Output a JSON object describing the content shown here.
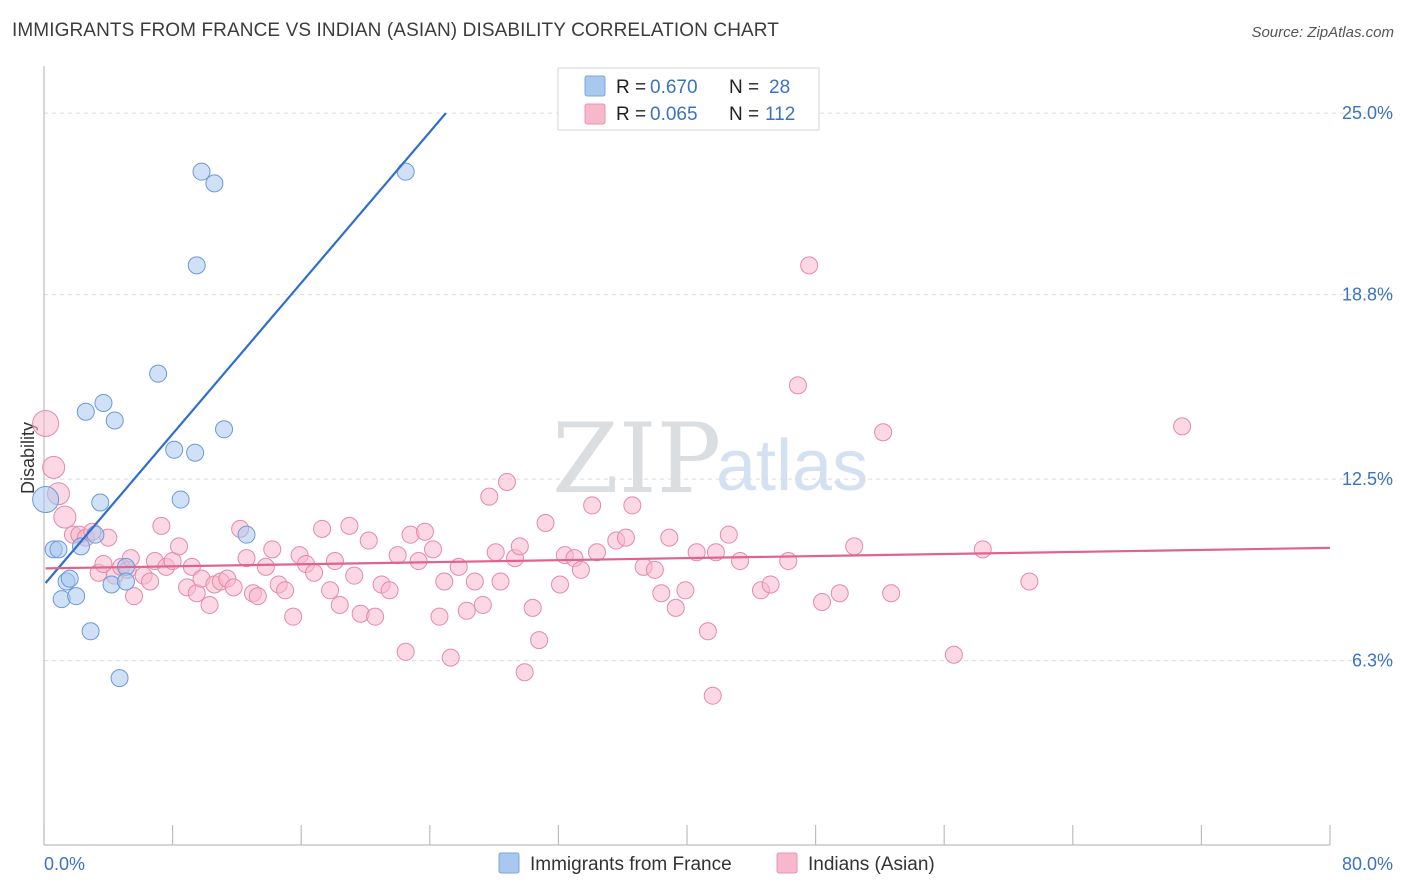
{
  "header": {
    "title": "IMMIGRANTS FROM FRANCE VS INDIAN (ASIAN) DISABILITY CORRELATION CHART",
    "source": "Source: ZipAtlas.com"
  },
  "watermark": {
    "part1": "ZIP",
    "part2": "atlas"
  },
  "legend": {
    "r_label": "R =",
    "n_label": "N =",
    "rows": [
      {
        "r": "0.670",
        "n": "28",
        "color": "#a9c8f0"
      },
      {
        "r": "0.065",
        "n": "112",
        "color": "#f7b8cc"
      }
    ]
  },
  "bottom_legend": {
    "items": [
      {
        "label": "Immigrants from France",
        "color": "#a9c8f0"
      },
      {
        "label": "Indians (Asian)",
        "color": "#f7b8cc"
      }
    ]
  },
  "chart_data": {
    "type": "scatter",
    "title": "IMMIGRANTS FROM FRANCE VS INDIAN (ASIAN) DISABILITY CORRELATION CHART",
    "xlabel": "",
    "ylabel": "Disability",
    "xlim": [
      0,
      80
    ],
    "ylim": [
      0,
      26.2
    ],
    "x_tick_labels": [
      "0.0%",
      "80.0%"
    ],
    "y_ticks": [
      6.3,
      12.5,
      18.8,
      25.0
    ],
    "y_tick_labels": [
      "6.3%",
      "12.5%",
      "18.8%",
      "25.0%"
    ],
    "grid": true,
    "legend_position": "top-center",
    "series": [
      {
        "name": "Immigrants from France",
        "color": "#a9c8f0",
        "stroke": "#6a9ad6",
        "trend_color": "#2f6fcc",
        "trend": {
          "x": [
            0.1,
            25.0
          ],
          "y": [
            8.95,
            25.0
          ]
        },
        "points": [
          [
            0.1,
            11.8
          ],
          [
            0.6,
            10.1
          ],
          [
            0.9,
            10.1
          ],
          [
            1.1,
            8.4
          ],
          [
            1.4,
            9.0
          ],
          [
            1.6,
            9.1
          ],
          [
            2.0,
            8.5
          ],
          [
            2.3,
            10.2
          ],
          [
            2.6,
            14.8
          ],
          [
            2.9,
            7.3
          ],
          [
            3.2,
            10.6
          ],
          [
            3.5,
            11.7
          ],
          [
            3.7,
            15.1
          ],
          [
            4.2,
            8.9
          ],
          [
            4.4,
            14.5
          ],
          [
            4.7,
            5.7
          ],
          [
            5.1,
            9.5
          ],
          [
            5.1,
            9.0
          ],
          [
            7.1,
            16.1
          ],
          [
            8.1,
            13.5
          ],
          [
            8.5,
            11.8
          ],
          [
            9.4,
            13.4
          ],
          [
            9.5,
            19.8
          ],
          [
            9.8,
            23.0
          ],
          [
            10.6,
            22.6
          ],
          [
            11.2,
            14.2
          ],
          [
            12.6,
            10.6
          ],
          [
            22.5,
            23.0
          ]
        ]
      },
      {
        "name": "Indians (Asian)",
        "color": "#f7b8cc",
        "stroke": "#e58aa8",
        "trend_color": "#e0628d",
        "trend": {
          "x": [
            0.1,
            80.0
          ],
          "y": [
            9.45,
            10.15
          ]
        },
        "points": [
          [
            0.1,
            14.4
          ],
          [
            0.6,
            12.9
          ],
          [
            0.9,
            12.0
          ],
          [
            1.3,
            11.2
          ],
          [
            1.8,
            10.6
          ],
          [
            2.2,
            10.6
          ],
          [
            2.6,
            10.5
          ],
          [
            3.0,
            10.7
          ],
          [
            3.4,
            9.3
          ],
          [
            3.7,
            9.6
          ],
          [
            4.0,
            10.5
          ],
          [
            4.4,
            9.2
          ],
          [
            4.8,
            9.5
          ],
          [
            5.2,
            9.4
          ],
          [
            5.4,
            9.8
          ],
          [
            5.6,
            8.5
          ],
          [
            6.2,
            9.2
          ],
          [
            6.6,
            9.0
          ],
          [
            6.9,
            9.7
          ],
          [
            7.3,
            10.9
          ],
          [
            7.6,
            9.5
          ],
          [
            8.0,
            9.7
          ],
          [
            8.4,
            10.2
          ],
          [
            8.9,
            8.8
          ],
          [
            9.2,
            9.5
          ],
          [
            9.5,
            8.6
          ],
          [
            9.8,
            9.1
          ],
          [
            10.3,
            8.2
          ],
          [
            10.6,
            8.9
          ],
          [
            11.0,
            9.0
          ],
          [
            11.4,
            9.1
          ],
          [
            11.8,
            8.8
          ],
          [
            12.2,
            10.8
          ],
          [
            12.6,
            9.8
          ],
          [
            13.0,
            8.6
          ],
          [
            13.3,
            8.5
          ],
          [
            13.8,
            9.5
          ],
          [
            14.2,
            10.1
          ],
          [
            14.6,
            8.9
          ],
          [
            15.0,
            8.7
          ],
          [
            15.5,
            7.8
          ],
          [
            15.9,
            9.9
          ],
          [
            16.3,
            9.6
          ],
          [
            16.8,
            9.3
          ],
          [
            17.3,
            10.8
          ],
          [
            17.8,
            8.7
          ],
          [
            18.1,
            9.7
          ],
          [
            18.4,
            8.2
          ],
          [
            19.0,
            10.9
          ],
          [
            19.3,
            9.2
          ],
          [
            19.7,
            7.9
          ],
          [
            20.2,
            10.4
          ],
          [
            20.6,
            7.8
          ],
          [
            21.0,
            8.9
          ],
          [
            21.5,
            8.7
          ],
          [
            22.0,
            9.9
          ],
          [
            22.5,
            6.6
          ],
          [
            22.8,
            10.6
          ],
          [
            23.3,
            9.7
          ],
          [
            23.7,
            10.7
          ],
          [
            24.2,
            10.1
          ],
          [
            24.6,
            7.8
          ],
          [
            24.9,
            9.0
          ],
          [
            25.3,
            6.4
          ],
          [
            25.8,
            9.5
          ],
          [
            26.3,
            8.0
          ],
          [
            26.8,
            9.0
          ],
          [
            27.3,
            8.2
          ],
          [
            27.7,
            11.9
          ],
          [
            28.1,
            10.0
          ],
          [
            28.4,
            9.0
          ],
          [
            28.8,
            12.4
          ],
          [
            29.3,
            9.8
          ],
          [
            29.6,
            10.2
          ],
          [
            29.9,
            5.9
          ],
          [
            30.4,
            8.1
          ],
          [
            30.8,
            7.0
          ],
          [
            31.2,
            11.0
          ],
          [
            32.1,
            8.9
          ],
          [
            32.4,
            9.9
          ],
          [
            33.0,
            9.8
          ],
          [
            33.4,
            9.4
          ],
          [
            34.1,
            11.6
          ],
          [
            34.4,
            10.0
          ],
          [
            35.6,
            10.4
          ],
          [
            36.2,
            10.5
          ],
          [
            36.6,
            11.6
          ],
          [
            37.3,
            9.5
          ],
          [
            38.0,
            9.4
          ],
          [
            38.4,
            8.6
          ],
          [
            38.9,
            10.5
          ],
          [
            39.3,
            8.1
          ],
          [
            39.9,
            8.7
          ],
          [
            40.6,
            10.0
          ],
          [
            41.3,
            7.3
          ],
          [
            41.6,
            5.1
          ],
          [
            41.8,
            10.0
          ],
          [
            42.6,
            10.6
          ],
          [
            43.3,
            9.7
          ],
          [
            44.6,
            8.7
          ],
          [
            45.2,
            8.9
          ],
          [
            46.3,
            9.7
          ],
          [
            46.9,
            15.7
          ],
          [
            47.6,
            19.8
          ],
          [
            48.4,
            8.3
          ],
          [
            49.5,
            8.6
          ],
          [
            50.4,
            10.2
          ],
          [
            52.2,
            14.1
          ],
          [
            52.7,
            8.6
          ],
          [
            56.6,
            6.5
          ],
          [
            58.4,
            10.1
          ],
          [
            61.3,
            9.0
          ],
          [
            70.8,
            14.3
          ]
        ]
      }
    ]
  }
}
